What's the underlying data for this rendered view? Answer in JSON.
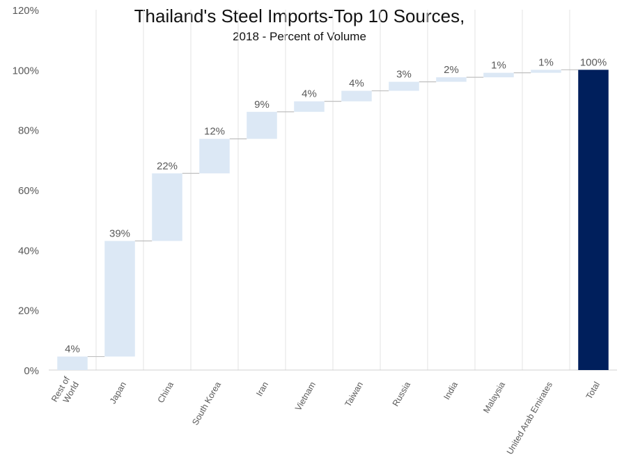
{
  "chart_data": {
    "type": "bar",
    "subtype": "waterfall",
    "title": "Thailand's Steel Imports-Top 10 Sources,",
    "subtitle": "2018 - Percent of Volume",
    "categories": [
      "Rest of World",
      "Japan",
      "China",
      "South Korea",
      "Iran",
      "Vietnam",
      "Taiwan",
      "Russia",
      "India",
      "Malaysia",
      "United Arab Emirates",
      "Total"
    ],
    "values": [
      4,
      39,
      22,
      12,
      9,
      4,
      4,
      3,
      2,
      1,
      1,
      100
    ],
    "cumulative_start": [
      0,
      4.5,
      43,
      65.5,
      77,
      86,
      89.5,
      93,
      96,
      97.5,
      99,
      0
    ],
    "cumulative_end": [
      4.5,
      43,
      65.5,
      77,
      86,
      89.5,
      93,
      96,
      97.5,
      99,
      100,
      100
    ],
    "data_labels": [
      "4%",
      "39%",
      "22%",
      "12%",
      "9%",
      "4%",
      "4%",
      "3%",
      "2%",
      "1%",
      "1%",
      "100%"
    ],
    "ylim": [
      0,
      120
    ],
    "yticks": [
      0,
      20,
      40,
      60,
      80,
      100,
      120
    ],
    "ytick_labels": [
      "0%",
      "20%",
      "40%",
      "60%",
      "80%",
      "100%",
      "120%"
    ],
    "xlabel": "",
    "ylabel": "",
    "grid": "vertical",
    "legend": "none",
    "colors": {
      "increase": "#dce8f5",
      "total": "#001f5c",
      "connector": "#bfbfbf",
      "grid": "#e3e3e3",
      "label": "#595959"
    }
  }
}
